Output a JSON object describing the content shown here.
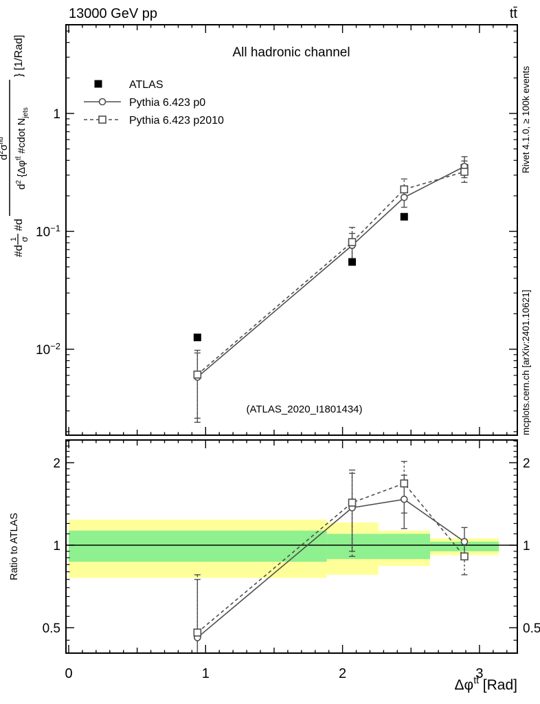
{
  "header": {
    "left": "13000 GeV pp",
    "right": "tt̄"
  },
  "side_notes": {
    "right_top": "Rivet 4.1.0, ≥ 100k events",
    "right_bottom": "mcplots.cern.ch [arXiv:2401.10621]"
  },
  "main_panel": {
    "title": "All hadronic channel",
    "watermark": "(ATLAS_2020_I1801434)",
    "legend": [
      {
        "label": "ATLAS"
      },
      {
        "label": "Pythia 6.423 p0"
      },
      {
        "label": "Pythia 6.423 p2010"
      }
    ],
    "ylabel_parts": {
      "prefix": "#d",
      "frac_num": "1",
      "frac_den": "σ",
      "mid": "#d",
      "num_base": "d",
      "num_sup": "2",
      "num_sigma": "σ",
      "num_sigma_sup": "fid",
      "den_base": "d",
      "den_sup": "2",
      "den_body": " {Δφ",
      "den_phi_sup": "tt̄",
      "den_rest": " #cdot N",
      "den_sub": "jets",
      "suffix": "} [1/Rad]"
    }
  },
  "ratio_panel": {
    "ylabel": "Ratio to ATLAS"
  },
  "xaxis": {
    "label_base": "Δφ",
    "label_sup": "tt̄",
    "label_unit": " [Rad]"
  },
  "colors": {
    "band_outer": "#ffff99",
    "band_inner": "#8ef08e",
    "mc": "#4d4d4d",
    "atlas": "#000000",
    "watermark": "#9a9a9a",
    "side_text": "#7a7a7a"
  },
  "chart_data": {
    "type": "line",
    "title": "All hadronic channel",
    "xlabel": "Δφ^{tt̄} [Rad]",
    "ylabel": "1/σ d²σ^{fid} / d²{Δφ^{tt̄} · N_{jets}} [1/Rad]",
    "x_range": [
      -0.02,
      3.277
    ],
    "x_major_ticks": [
      0,
      1,
      2,
      3
    ],
    "x_minor_step": 0.1,
    "x_minor_max": 3.2,
    "x": [
      0.94,
      2.07,
      2.45,
      2.89
    ],
    "main": {
      "y_scale": "log",
      "y_range": [
        0.00187,
        5.57
      ],
      "y_major_ticks": [
        {
          "v": 1,
          "t": "1"
        },
        {
          "v": 0.1,
          "t": "10",
          "sup": "−1"
        },
        {
          "v": 0.01,
          "t": "10",
          "sup": "−2"
        }
      ],
      "series": [
        {
          "name": "ATLAS",
          "marker": "square-filled",
          "line": "none",
          "y": [
            0.0126,
            0.055,
            0.133,
            0.345
          ]
        },
        {
          "name": "Pythia 6.423 p0",
          "marker": "circle-open",
          "line": "solid",
          "y": [
            0.0058,
            0.076,
            0.194,
            0.355
          ],
          "ylo": [
            0.0024,
            0.052,
            0.16,
            0.285
          ],
          "yhi": [
            0.0093,
            0.096,
            0.24,
            0.43
          ]
        },
        {
          "name": "Pythia 6.423 p2010",
          "marker": "square-open",
          "line": "dashed",
          "y": [
            0.0061,
            0.081,
            0.227,
            0.32
          ],
          "ylo": [
            0.0026,
            0.055,
            0.19,
            0.26
          ],
          "yhi": [
            0.0098,
            0.108,
            0.278,
            0.395
          ]
        }
      ]
    },
    "ratio": {
      "y_scale": "log",
      "y_range": [
        0.404,
        2.42
      ],
      "reference_line": 1,
      "y_major_ticks": [
        {
          "v": 2,
          "t": "2"
        },
        {
          "v": 1,
          "t": "1"
        },
        {
          "v": 0.5,
          "t": "0.5"
        }
      ],
      "y_minor_ticks": [
        0.45,
        0.55,
        0.6,
        0.65,
        0.7,
        0.75,
        0.8,
        0.85,
        0.9,
        0.95,
        1.1,
        1.2,
        1.3,
        1.4,
        1.5,
        1.6,
        1.7,
        1.8,
        1.9,
        2.1,
        2.2,
        2.3,
        2.4
      ],
      "bands": {
        "edges": [
          0,
          1.885,
          2.262,
          2.639,
          3.1416
        ],
        "outer": [
          [
            0.76,
            1.24
          ],
          [
            0.78,
            1.21
          ],
          [
            0.84,
            1.13
          ],
          [
            0.92,
            1.06
          ]
        ],
        "inner": [
          [
            0.87,
            1.13
          ],
          [
            0.89,
            1.1
          ],
          [
            0.89,
            1.1
          ],
          [
            0.95,
            1.03
          ]
        ]
      },
      "series": [
        {
          "name": "Pythia 6.423 p0",
          "marker": "circle-open",
          "line": "solid",
          "y": [
            0.46,
            1.37,
            1.47,
            1.03
          ],
          "ylo": [
            0.3,
            0.95,
            1.15,
            0.9
          ],
          "yhi": [
            0.75,
            1.83,
            1.8,
            1.16
          ]
        },
        {
          "name": "Pythia 6.423 p2010",
          "marker": "square-open",
          "line": "dashed",
          "y": [
            0.48,
            1.43,
            1.68,
            0.91
          ],
          "ylo": [
            0.3,
            0.91,
            1.31,
            0.78
          ],
          "yhi": [
            0.78,
            1.88,
            2.02,
            1.04
          ]
        }
      ]
    }
  }
}
